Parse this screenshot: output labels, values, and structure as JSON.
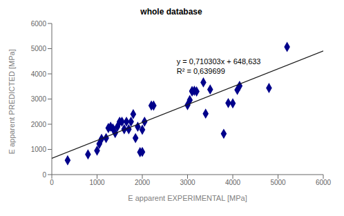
{
  "chart_data": {
    "type": "scatter",
    "title": "whole database",
    "x_label": "E apparent EXPERIMENTAL [MPa]",
    "y_label": "E apparent PREDICTED [MPa]",
    "xlim": [
      0,
      6000
    ],
    "ylim": [
      0,
      6000
    ],
    "xticks": [
      0,
      1000,
      2000,
      3000,
      4000,
      5000,
      6000
    ],
    "yticks": [
      0,
      1000,
      2000,
      3000,
      4000,
      5000,
      6000
    ],
    "grid": false,
    "annotations": [
      "y = 0,710303x + 648,633\nR² = 0,639699"
    ],
    "series": [
      {
        "type": "scatter",
        "color": "#00008B",
        "marker": "diamond",
        "x": [
          350,
          800,
          1000,
          1050,
          1100,
          1200,
          1250,
          1300,
          1350,
          1400,
          1450,
          1500,
          1550,
          1600,
          1650,
          1700,
          1750,
          1800,
          1850,
          1900,
          1950,
          2000,
          2000,
          2050,
          2200,
          2250,
          3000,
          3050,
          3100,
          3100,
          3150,
          3200,
          3350,
          3400,
          3500,
          3800,
          3900,
          4000,
          4100,
          4150,
          4800,
          5200
        ],
        "values": [
          570,
          800,
          950,
          1220,
          1420,
          1450,
          1850,
          1900,
          1830,
          1650,
          1900,
          2100,
          2100,
          1800,
          2100,
          1800,
          2100,
          2400,
          1450,
          1900,
          890,
          1780,
          900,
          2100,
          2740,
          2740,
          2760,
          2960,
          3300,
          3320,
          3330,
          3300,
          3660,
          2420,
          3380,
          1620,
          2840,
          2830,
          3360,
          3520,
          3440,
          5070
        ]
      },
      {
        "type": "line",
        "color": "#1a1a1a",
        "x": [
          0,
          6000
        ],
        "values": [
          648.633,
          4910.451
        ]
      }
    ]
  }
}
